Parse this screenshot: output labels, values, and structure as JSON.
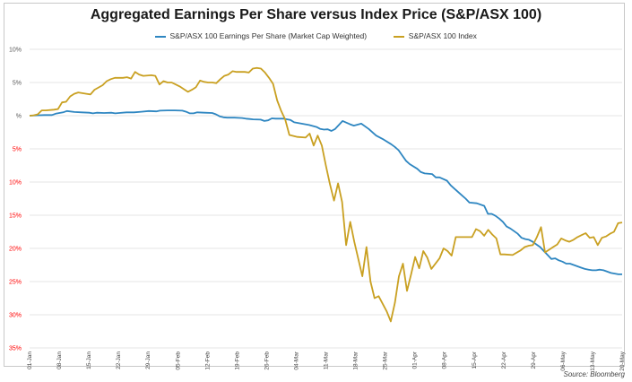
{
  "chart_data": {
    "type": "line",
    "title": "Aggregated Earnings Per Share versus Index Price (S&P/ASX 100)",
    "xlabel": "",
    "ylabel": "",
    "source": "Source: Bloomberg",
    "ylim": [
      -35,
      10
    ],
    "grid": true,
    "legend_position": "top-center",
    "y_ticks": [
      {
        "value": 10,
        "label": "10%",
        "color": "#595959"
      },
      {
        "value": 5,
        "label": "5%",
        "color": "#595959"
      },
      {
        "value": 0,
        "label": "%",
        "color": "#595959"
      },
      {
        "value": -5,
        "label": "5%",
        "color": "#ff0000"
      },
      {
        "value": -10,
        "label": "10%",
        "color": "#ff0000"
      },
      {
        "value": -15,
        "label": "15%",
        "color": "#ff0000"
      },
      {
        "value": -20,
        "label": "20%",
        "color": "#ff0000"
      },
      {
        "value": -25,
        "label": "25%",
        "color": "#ff0000"
      },
      {
        "value": -30,
        "label": "30%",
        "color": "#ff0000"
      },
      {
        "value": -35,
        "label": "35%",
        "color": "#ff0000"
      }
    ],
    "x_ticks": [
      {
        "day": 0,
        "label": "01-Jan"
      },
      {
        "day": 7,
        "label": "08-Jan"
      },
      {
        "day": 14,
        "label": "15-Jan"
      },
      {
        "day": 21,
        "label": "22-Jan"
      },
      {
        "day": 28,
        "label": "29-Jan"
      },
      {
        "day": 35,
        "label": "05-Feb"
      },
      {
        "day": 42,
        "label": "12-Feb"
      },
      {
        "day": 49,
        "label": "19-Feb"
      },
      {
        "day": 56,
        "label": "26-Feb"
      },
      {
        "day": 63,
        "label": "04-Mar"
      },
      {
        "day": 70,
        "label": "11-Mar"
      },
      {
        "day": 77,
        "label": "18-Mar"
      },
      {
        "day": 84,
        "label": "25-Mar"
      },
      {
        "day": 91,
        "label": "01-Apr"
      },
      {
        "day": 98,
        "label": "08-Apr"
      },
      {
        "day": 105,
        "label": "15-Apr"
      },
      {
        "day": 112,
        "label": "22-Apr"
      },
      {
        "day": 119,
        "label": "29-Apr"
      },
      {
        "day": 126,
        "label": "06-May"
      },
      {
        "day": 133,
        "label": "13-May"
      },
      {
        "day": 140,
        "label": "20-May"
      }
    ],
    "xlim": [
      0,
      140
    ],
    "series": [
      {
        "name": "S&P/ASX 100 Earnings Per Share (Market Cap Weighted)",
        "color": "#2e86c1",
        "points": [
          [
            0,
            0
          ],
          [
            2,
            0.05
          ],
          [
            4,
            0.1
          ],
          [
            6,
            0.1
          ],
          [
            7,
            0.3
          ],
          [
            8,
            0.4
          ],
          [
            9,
            0.5
          ],
          [
            10,
            0.7
          ],
          [
            12,
            0.55
          ],
          [
            14,
            0.5
          ],
          [
            16,
            0.45
          ],
          [
            17,
            0.35
          ],
          [
            18,
            0.45
          ],
          [
            20,
            0.4
          ],
          [
            22,
            0.45
          ],
          [
            23,
            0.35
          ],
          [
            24,
            0.4
          ],
          [
            26,
            0.5
          ],
          [
            28,
            0.5
          ],
          [
            30,
            0.6
          ],
          [
            32,
            0.7
          ],
          [
            34,
            0.65
          ],
          [
            35,
            0.75
          ],
          [
            37,
            0.8
          ],
          [
            39,
            0.8
          ],
          [
            41,
            0.75
          ],
          [
            42,
            0.6
          ],
          [
            43,
            0.35
          ],
          [
            44,
            0.35
          ],
          [
            45,
            0.5
          ],
          [
            47,
            0.45
          ],
          [
            49,
            0.4
          ],
          [
            50,
            0.2
          ],
          [
            51,
            -0.1
          ],
          [
            52,
            -0.25
          ],
          [
            53,
            -0.3
          ],
          [
            55,
            -0.3
          ],
          [
            57,
            -0.35
          ],
          [
            58,
            -0.45
          ],
          [
            59,
            -0.5
          ],
          [
            60,
            -0.55
          ],
          [
            62,
            -0.6
          ],
          [
            63,
            -0.8
          ],
          [
            64,
            -0.7
          ],
          [
            65,
            -0.4
          ],
          [
            66,
            -0.45
          ],
          [
            68,
            -0.45
          ],
          [
            70,
            -0.65
          ],
          [
            71,
            -1.0
          ],
          [
            73,
            -1.2
          ],
          [
            75,
            -1.4
          ],
          [
            77,
            -1.7
          ],
          [
            78,
            -2.0
          ],
          [
            79,
            -2.1
          ],
          [
            80,
            -2.05
          ],
          [
            81,
            -2.3
          ],
          [
            82,
            -2.0
          ],
          [
            84,
            -0.8
          ],
          [
            86,
            -1.3
          ],
          [
            87,
            -1.5
          ],
          [
            89,
            -1.2
          ],
          [
            91,
            -2.0
          ],
          [
            93,
            -3.0
          ],
          [
            95,
            -3.6
          ],
          [
            97,
            -4.3
          ],
          [
            98,
            -4.7
          ],
          [
            99,
            -5.2
          ],
          [
            100,
            -6.0
          ],
          [
            101,
            -6.8
          ],
          [
            102,
            -7.3
          ],
          [
            104,
            -8.0
          ],
          [
            105,
            -8.5
          ],
          [
            106,
            -8.7
          ],
          [
            108,
            -8.8
          ],
          [
            109,
            -9.3
          ],
          [
            110,
            -9.3
          ],
          [
            112,
            -9.8
          ],
          [
            113,
            -10.5
          ],
          [
            114,
            -11.0
          ],
          [
            116,
            -12.0
          ],
          [
            117,
            -12.5
          ],
          [
            118,
            -13.1
          ],
          [
            120,
            -13.2
          ],
          [
            122,
            -13.6
          ],
          [
            123,
            -14.8
          ],
          [
            124,
            -14.8
          ],
          [
            125,
            -15.1
          ],
          [
            126,
            -15.5
          ],
          [
            127,
            -16.0
          ],
          [
            128,
            -16.7
          ],
          [
            129,
            -17.0
          ],
          [
            131,
            -17.8
          ],
          [
            132,
            -18.4
          ],
          [
            133,
            -18.6
          ],
          [
            134,
            -18.7
          ],
          [
            135,
            -19.0
          ],
          [
            136,
            -19.4
          ],
          [
            137,
            -19.8
          ],
          [
            138,
            -20.4
          ],
          [
            139,
            -21.0
          ],
          [
            140,
            -21.6
          ],
          [
            141,
            -21.5
          ],
          [
            142,
            -21.8
          ],
          [
            143,
            -22.0
          ],
          [
            144,
            -22.3
          ],
          [
            145,
            -22.3
          ],
          [
            146,
            -22.5
          ],
          [
            148,
            -22.9
          ],
          [
            149,
            -23.1
          ],
          [
            150,
            -23.2
          ],
          [
            151,
            -23.3
          ],
          [
            152,
            -23.3
          ],
          [
            153,
            -23.2
          ],
          [
            154,
            -23.3
          ],
          [
            155,
            -23.5
          ],
          [
            156,
            -23.7
          ],
          [
            157,
            -23.8
          ],
          [
            158,
            -23.9
          ],
          [
            159,
            -23.9
          ]
        ]
      },
      {
        "name": "S&P/ASX 100 Index",
        "color": "#c9a021",
        "points": [
          [
            0,
            0
          ],
          [
            1,
            0.05
          ],
          [
            2,
            0.2
          ],
          [
            3,
            0.8
          ],
          [
            4,
            0.8
          ],
          [
            6,
            0.9
          ],
          [
            7,
            1.0
          ],
          [
            8,
            2.0
          ],
          [
            9,
            2.1
          ],
          [
            10,
            2.9
          ],
          [
            11,
            3.3
          ],
          [
            12,
            3.5
          ],
          [
            14,
            3.3
          ],
          [
            15,
            3.2
          ],
          [
            16,
            3.9
          ],
          [
            18,
            4.6
          ],
          [
            19,
            5.2
          ],
          [
            20,
            5.5
          ],
          [
            21,
            5.7
          ],
          [
            23,
            5.7
          ],
          [
            24,
            5.8
          ],
          [
            25,
            5.6
          ],
          [
            26,
            6.6
          ],
          [
            27,
            6.2
          ],
          [
            28,
            6.0
          ],
          [
            30,
            6.1
          ],
          [
            31,
            6.0
          ],
          [
            32,
            4.7
          ],
          [
            33,
            5.2
          ],
          [
            34,
            5.0
          ],
          [
            35,
            5.0
          ],
          [
            36,
            4.7
          ],
          [
            37,
            4.4
          ],
          [
            38,
            4.0
          ],
          [
            39,
            3.6
          ],
          [
            40,
            3.9
          ],
          [
            41,
            4.3
          ],
          [
            42,
            5.3
          ],
          [
            43,
            5.1
          ],
          [
            44,
            5.0
          ],
          [
            45,
            5.0
          ],
          [
            46,
            4.9
          ],
          [
            47,
            5.5
          ],
          [
            48,
            6.0
          ],
          [
            49,
            6.2
          ],
          [
            50,
            6.7
          ],
          [
            51,
            6.6
          ],
          [
            52,
            6.6
          ],
          [
            53,
            6.6
          ],
          [
            54,
            6.5
          ],
          [
            55,
            7.1
          ],
          [
            56,
            7.2
          ],
          [
            57,
            7.1
          ],
          [
            58,
            6.5
          ],
          [
            59,
            5.7
          ],
          [
            60,
            4.8
          ],
          [
            61,
            2.3
          ],
          [
            62,
            0.7
          ],
          [
            63,
            -0.6
          ],
          [
            64,
            -2.9
          ],
          [
            66,
            -3.2
          ],
          [
            68,
            -3.3
          ],
          [
            69,
            -2.7
          ],
          [
            70,
            -4.5
          ],
          [
            71,
            -3.0
          ],
          [
            72,
            -4.5
          ],
          [
            73,
            -7.5
          ],
          [
            74,
            -10.3
          ],
          [
            75,
            -12.8
          ],
          [
            76,
            -10.2
          ],
          [
            77,
            -13.0
          ],
          [
            78,
            -19.5
          ],
          [
            79,
            -16.0
          ],
          [
            80,
            -19.0
          ],
          [
            82,
            -24.2
          ],
          [
            83,
            -19.8
          ],
          [
            84,
            -25.0
          ],
          [
            85,
            -27.5
          ],
          [
            86,
            -27.2
          ],
          [
            88,
            -29.5
          ],
          [
            89,
            -31.0
          ],
          [
            90,
            -28.2
          ],
          [
            91,
            -24.2
          ],
          [
            92,
            -22.3
          ],
          [
            93,
            -26.4
          ],
          [
            94,
            -23.9
          ],
          [
            95,
            -21.3
          ],
          [
            96,
            -23.0
          ],
          [
            97,
            -20.4
          ],
          [
            98,
            -21.4
          ],
          [
            99,
            -23.1
          ],
          [
            101,
            -21.5
          ],
          [
            102,
            -20.0
          ],
          [
            103,
            -20.4
          ],
          [
            104,
            -21.1
          ],
          [
            105,
            -18.3
          ],
          [
            107,
            -18.3
          ],
          [
            108,
            -18.3
          ],
          [
            109,
            -18.3
          ],
          [
            110,
            -17.1
          ],
          [
            111,
            -17.4
          ],
          [
            112,
            -18.1
          ],
          [
            113,
            -17.2
          ],
          [
            114,
            -17.9
          ],
          [
            115,
            -18.5
          ],
          [
            116,
            -20.9
          ],
          [
            117,
            -20.9
          ],
          [
            119,
            -21.0
          ],
          [
            121,
            -20.3
          ],
          [
            122,
            -19.8
          ],
          [
            123,
            -19.6
          ],
          [
            124,
            -19.5
          ],
          [
            125,
            -18.3
          ],
          [
            126,
            -16.8
          ],
          [
            127,
            -20.6
          ],
          [
            128,
            -20.2
          ],
          [
            129,
            -19.8
          ],
          [
            130,
            -19.4
          ],
          [
            131,
            -18.5
          ],
          [
            132,
            -18.8
          ],
          [
            133,
            -19.0
          ],
          [
            134,
            -18.7
          ],
          [
            135,
            -18.3
          ],
          [
            136,
            -18.0
          ],
          [
            137,
            -17.7
          ],
          [
            138,
            -18.4
          ],
          [
            139,
            -18.3
          ],
          [
            140,
            -19.5
          ],
          [
            141,
            -18.4
          ],
          [
            142,
            -18.2
          ],
          [
            143,
            -17.8
          ],
          [
            144,
            -17.5
          ],
          [
            145,
            -16.2
          ],
          [
            146,
            -16.1
          ]
        ]
      }
    ]
  },
  "legend": {
    "items": [
      {
        "label": "S&P/ASX 100 Earnings Per Share (Market Cap Weighted)",
        "color": "#2e86c1"
      },
      {
        "label": "S&P/ASX 100 Index",
        "color": "#c9a021"
      }
    ]
  }
}
